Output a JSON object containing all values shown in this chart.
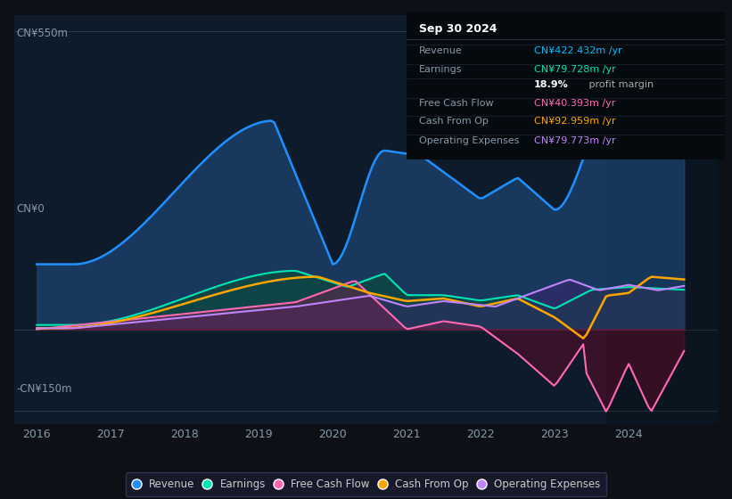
{
  "background_color": "#0d1117",
  "plot_bg_color": "#0d1b2a",
  "y_label_top": "CN¥550m",
  "y_label_zero": "CN¥0",
  "y_label_bottom": "-CN¥150m",
  "ylim": [
    -175,
    580
  ],
  "xlim_start": 2015.7,
  "xlim_end": 2025.2,
  "xticks": [
    2016,
    2017,
    2018,
    2019,
    2020,
    2021,
    2022,
    2023,
    2024
  ],
  "grid_color": "#2a3a4a",
  "info_date": "Sep 30 2024",
  "info_rows": [
    {
      "label": "Revenue",
      "value": "CN¥422.432m /yr",
      "color": "#00bfff"
    },
    {
      "label": "Earnings",
      "value": "CN¥79.728m /yr",
      "color": "#00e5b4"
    },
    {
      "label": "",
      "value": "18.9% profit margin",
      "color": "#aaaaaa"
    },
    {
      "label": "Free Cash Flow",
      "value": "CN¥40.393m /yr",
      "color": "#ff69b4"
    },
    {
      "label": "Cash From Op",
      "value": "CN¥92.959m /yr",
      "color": "#ffa500"
    },
    {
      "label": "Operating Expenses",
      "value": "CN¥79.773m /yr",
      "color": "#c084fc"
    }
  ],
  "rev_color": "#1e90ff",
  "rev_fill": "#1e4a7a",
  "earn_color": "#00e5b4",
  "earn_fill": "#0a4a3a",
  "fcf_color": "#ff69b4",
  "fcf_fill_neg": "#6a0a2a",
  "fcf_fill_pos": "#8b1a4a",
  "cop_color": "#ffa500",
  "opex_color": "#c084fc",
  "opex_fill": "#4a1a7a",
  "legend_bg": "#1a1a2e",
  "legend_border": "#3a3a5a"
}
